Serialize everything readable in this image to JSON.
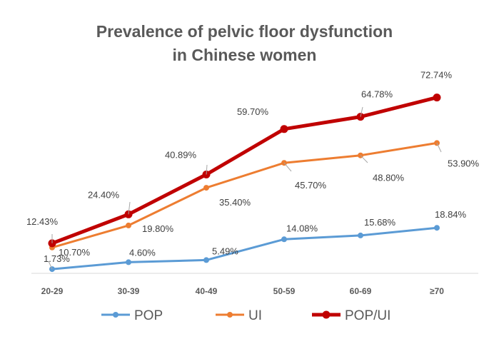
{
  "chart_data": {
    "type": "line",
    "title_line1": "Prevalence of pelvic floor dysfunction",
    "title_line2": "in Chinese women",
    "categories": [
      "20-29",
      "30-39",
      "40-49",
      "50-59",
      "60-69",
      "≥70"
    ],
    "ylim": [
      0,
      80
    ],
    "grid": false,
    "legend_position": "bottom",
    "series": [
      {
        "name": "POP",
        "color": "#5B9BD5",
        "values": [
          1.73,
          4.6,
          5.49,
          14.08,
          15.68,
          18.84
        ],
        "labels": [
          "1.73%",
          "4.60%",
          "5.49%",
          "14.08%",
          "15.68%",
          "18.84%"
        ]
      },
      {
        "name": "UI",
        "color": "#ED7D31",
        "values": [
          10.7,
          19.8,
          35.4,
          45.7,
          48.8,
          53.9
        ],
        "labels": [
          "10.70%",
          "19.80%",
          "35.40%",
          "45.70%",
          "48.80%",
          "53.90%"
        ]
      },
      {
        "name": "POP/UI",
        "color": "#C00000",
        "values": [
          12.43,
          24.4,
          40.89,
          59.7,
          64.78,
          72.74
        ],
        "labels": [
          "12.43%",
          "24.40%",
          "40.89%",
          "59.70%",
          "64.78%",
          "72.74%"
        ]
      }
    ]
  }
}
